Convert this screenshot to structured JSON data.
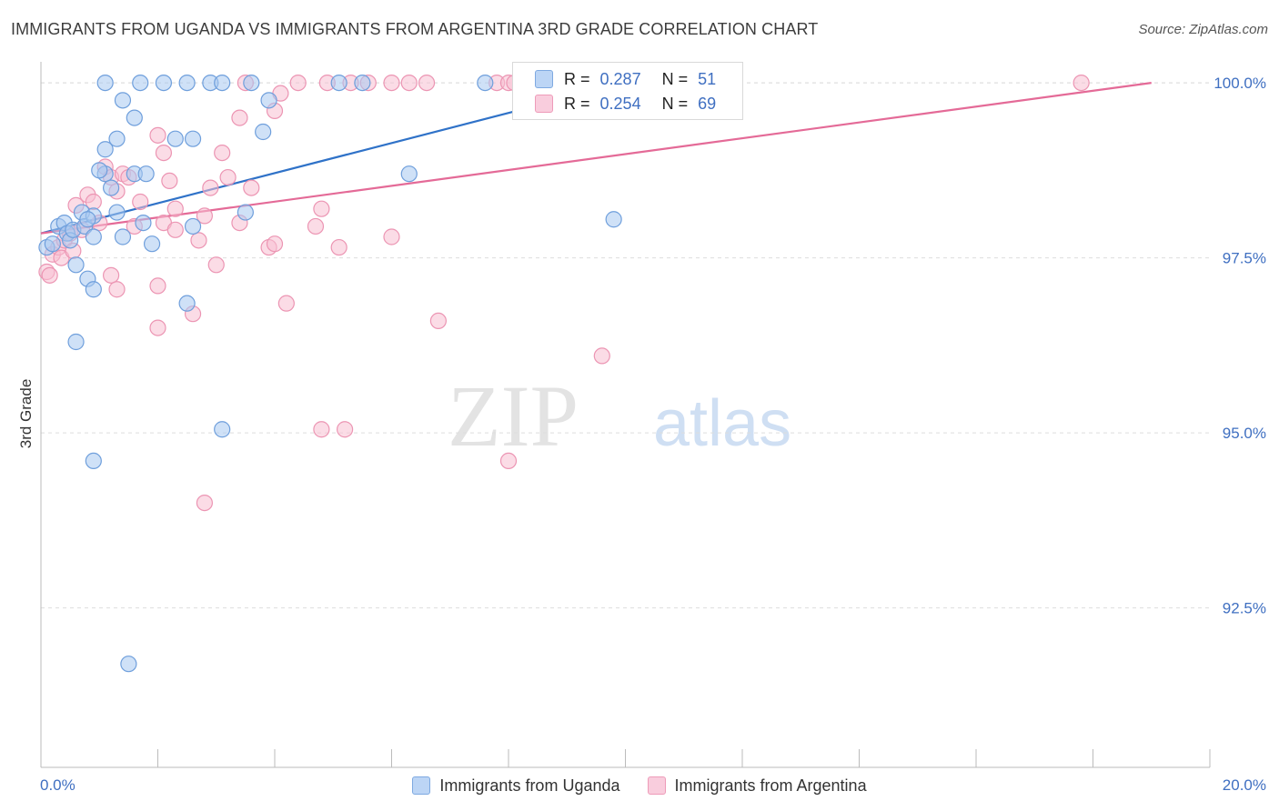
{
  "title": "IMMIGRANTS FROM UGANDA VS IMMIGRANTS FROM ARGENTINA 3RD GRADE CORRELATION CHART",
  "source": "Source: ZipAtlas.com",
  "watermark": {
    "zip": "ZIP",
    "atlas": "atlas"
  },
  "colors": {
    "uganda_fill": "#a8c8f0",
    "uganda_stroke": "#6f9fdc",
    "uganda_line": "#2f72c8",
    "argentina_fill": "#f7bfd2",
    "argentina_stroke": "#ec95b3",
    "argentina_line": "#e46a97",
    "tick_text": "#3f6fc1",
    "grid": "#dddddd"
  },
  "stats": {
    "r_label": "R =",
    "n_label": "N =",
    "uganda": {
      "r": "0.287",
      "n": "51"
    },
    "argentina": {
      "r": "0.254",
      "n": "69"
    }
  },
  "legend": {
    "uganda": "Immigrants from Uganda",
    "argentina": "Immigrants from Argentina"
  },
  "chart_data": {
    "type": "scatter",
    "title": "IMMIGRANTS FROM UGANDA VS IMMIGRANTS FROM ARGENTINA 3RD GRADE CORRELATION CHART",
    "xlabel": "",
    "ylabel": "3rd Grade",
    "xlim": [
      0,
      20
    ],
    "ylim": [
      90.3,
      100.3
    ],
    "x_tick_labels": [
      "0.0%",
      "20.0%"
    ],
    "y_ticks": [
      92.5,
      95.0,
      97.5,
      100.0
    ],
    "y_tick_labels": [
      "92.5%",
      "95.0%",
      "97.5%",
      "100.0%"
    ],
    "grid": true,
    "legend_position": "bottom",
    "series": [
      {
        "name": "Immigrants from Uganda",
        "trend": {
          "x": [
            0.0,
            10.0
          ],
          "y": [
            97.85,
            100.0
          ]
        },
        "points": [
          {
            "x": 0.1,
            "y": 97.65
          },
          {
            "x": 0.2,
            "y": 97.7
          },
          {
            "x": 0.3,
            "y": 97.95
          },
          {
            "x": 0.4,
            "y": 98.0
          },
          {
            "x": 0.45,
            "y": 97.85
          },
          {
            "x": 0.5,
            "y": 97.75
          },
          {
            "x": 0.55,
            "y": 97.9
          },
          {
            "x": 0.7,
            "y": 98.15
          },
          {
            "x": 0.75,
            "y": 97.95
          },
          {
            "x": 0.9,
            "y": 97.8
          },
          {
            "x": 0.9,
            "y": 98.1
          },
          {
            "x": 0.8,
            "y": 98.05
          },
          {
            "x": 0.6,
            "y": 97.4
          },
          {
            "x": 0.8,
            "y": 97.2
          },
          {
            "x": 0.9,
            "y": 97.05
          },
          {
            "x": 0.6,
            "y": 96.3
          },
          {
            "x": 0.9,
            "y": 94.6
          },
          {
            "x": 1.5,
            "y": 91.7
          },
          {
            "x": 1.1,
            "y": 98.7
          },
          {
            "x": 1.0,
            "y": 98.75
          },
          {
            "x": 1.2,
            "y": 98.5
          },
          {
            "x": 1.3,
            "y": 98.15
          },
          {
            "x": 1.4,
            "y": 97.8
          },
          {
            "x": 1.6,
            "y": 98.7
          },
          {
            "x": 1.8,
            "y": 98.7
          },
          {
            "x": 1.75,
            "y": 98.0
          },
          {
            "x": 1.9,
            "y": 97.7
          },
          {
            "x": 1.1,
            "y": 99.05
          },
          {
            "x": 1.3,
            "y": 99.2
          },
          {
            "x": 1.4,
            "y": 99.75
          },
          {
            "x": 1.6,
            "y": 99.5
          },
          {
            "x": 1.1,
            "y": 100.0
          },
          {
            "x": 1.7,
            "y": 100.0
          },
          {
            "x": 2.1,
            "y": 100.0
          },
          {
            "x": 2.5,
            "y": 100.0
          },
          {
            "x": 2.9,
            "y": 100.0
          },
          {
            "x": 2.6,
            "y": 99.2
          },
          {
            "x": 2.3,
            "y": 99.2
          },
          {
            "x": 2.6,
            "y": 97.95
          },
          {
            "x": 2.5,
            "y": 96.85
          },
          {
            "x": 3.1,
            "y": 100.0
          },
          {
            "x": 3.6,
            "y": 100.0
          },
          {
            "x": 3.8,
            "y": 99.3
          },
          {
            "x": 3.9,
            "y": 99.75
          },
          {
            "x": 3.5,
            "y": 98.15
          },
          {
            "x": 3.1,
            "y": 95.05
          },
          {
            "x": 5.1,
            "y": 100.0
          },
          {
            "x": 5.5,
            "y": 100.0
          },
          {
            "x": 6.3,
            "y": 98.7
          },
          {
            "x": 7.6,
            "y": 100.0
          },
          {
            "x": 9.8,
            "y": 98.05
          }
        ]
      },
      {
        "name": "Immigrants from Argentina",
        "trend": {
          "x": [
            0.0,
            19.0
          ],
          "y": [
            97.85,
            100.0
          ]
        },
        "points": [
          {
            "x": 0.1,
            "y": 97.3
          },
          {
            "x": 0.2,
            "y": 97.55
          },
          {
            "x": 0.3,
            "y": 97.65
          },
          {
            "x": 0.4,
            "y": 97.75
          },
          {
            "x": 0.5,
            "y": 97.85
          },
          {
            "x": 0.7,
            "y": 97.9
          },
          {
            "x": 0.6,
            "y": 98.25
          },
          {
            "x": 0.8,
            "y": 98.4
          },
          {
            "x": 0.9,
            "y": 98.3
          },
          {
            "x": 1.0,
            "y": 98.0
          },
          {
            "x": 1.1,
            "y": 98.8
          },
          {
            "x": 1.2,
            "y": 98.65
          },
          {
            "x": 1.3,
            "y": 98.45
          },
          {
            "x": 1.4,
            "y": 98.7
          },
          {
            "x": 1.5,
            "y": 98.65
          },
          {
            "x": 1.2,
            "y": 97.25
          },
          {
            "x": 1.3,
            "y": 97.05
          },
          {
            "x": 1.7,
            "y": 98.3
          },
          {
            "x": 1.6,
            "y": 97.95
          },
          {
            "x": 2.0,
            "y": 99.25
          },
          {
            "x": 2.1,
            "y": 99.0
          },
          {
            "x": 2.2,
            "y": 98.6
          },
          {
            "x": 2.3,
            "y": 98.2
          },
          {
            "x": 2.1,
            "y": 98.0
          },
          {
            "x": 2.3,
            "y": 97.9
          },
          {
            "x": 2.0,
            "y": 97.1
          },
          {
            "x": 2.0,
            "y": 96.5
          },
          {
            "x": 2.6,
            "y": 96.7
          },
          {
            "x": 2.7,
            "y": 97.75
          },
          {
            "x": 2.8,
            "y": 98.1
          },
          {
            "x": 2.9,
            "y": 98.5
          },
          {
            "x": 3.2,
            "y": 98.65
          },
          {
            "x": 3.1,
            "y": 99.0
          },
          {
            "x": 3.4,
            "y": 99.5
          },
          {
            "x": 3.6,
            "y": 98.5
          },
          {
            "x": 3.4,
            "y": 98.0
          },
          {
            "x": 3.0,
            "y": 97.4
          },
          {
            "x": 2.8,
            "y": 94.0
          },
          {
            "x": 3.5,
            "y": 100.0
          },
          {
            "x": 4.0,
            "y": 99.6
          },
          {
            "x": 4.1,
            "y": 99.85
          },
          {
            "x": 3.9,
            "y": 97.65
          },
          {
            "x": 4.0,
            "y": 97.7
          },
          {
            "x": 4.2,
            "y": 96.85
          },
          {
            "x": 4.4,
            "y": 100.0
          },
          {
            "x": 4.9,
            "y": 100.0
          },
          {
            "x": 5.3,
            "y": 100.0
          },
          {
            "x": 5.6,
            "y": 100.0
          },
          {
            "x": 4.7,
            "y": 97.95
          },
          {
            "x": 4.8,
            "y": 98.2
          },
          {
            "x": 5.1,
            "y": 97.65
          },
          {
            "x": 4.8,
            "y": 95.05
          },
          {
            "x": 5.2,
            "y": 95.05
          },
          {
            "x": 6.0,
            "y": 100.0
          },
          {
            "x": 6.3,
            "y": 100.0
          },
          {
            "x": 6.6,
            "y": 100.0
          },
          {
            "x": 6.0,
            "y": 97.8
          },
          {
            "x": 6.8,
            "y": 96.6
          },
          {
            "x": 7.8,
            "y": 100.0
          },
          {
            "x": 8.0,
            "y": 100.0
          },
          {
            "x": 8.1,
            "y": 100.0
          },
          {
            "x": 8.4,
            "y": 100.0
          },
          {
            "x": 8.3,
            "y": 99.75
          },
          {
            "x": 8.0,
            "y": 94.6
          },
          {
            "x": 9.6,
            "y": 96.1
          },
          {
            "x": 17.8,
            "y": 100.0
          },
          {
            "x": 0.15,
            "y": 97.25
          },
          {
            "x": 0.35,
            "y": 97.5
          },
          {
            "x": 0.55,
            "y": 97.6
          }
        ]
      }
    ]
  }
}
